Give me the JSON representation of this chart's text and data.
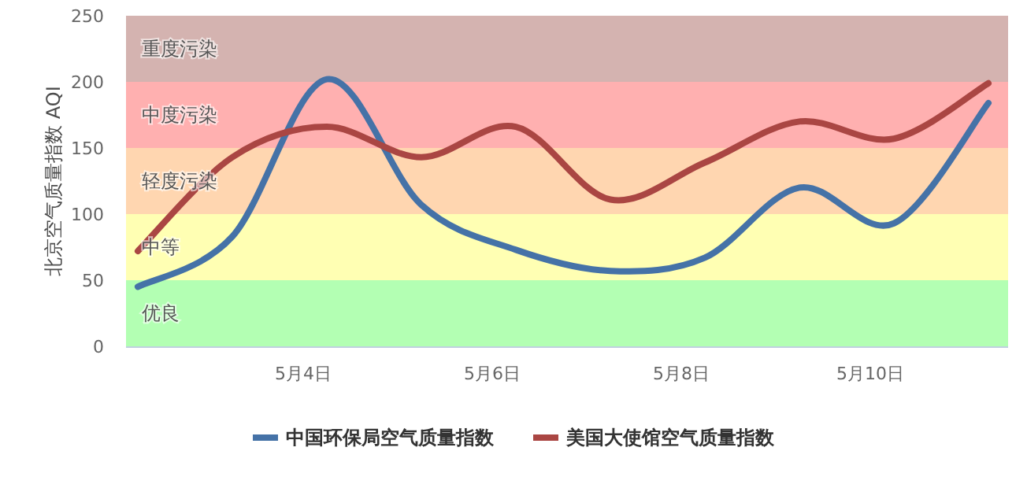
{
  "chart_data": {
    "type": "line",
    "ylabel": "北京空气质量指数 AQI",
    "legend": "bottom",
    "marker": "none",
    "xlim": [
      "--05-02T03:00",
      "--05-11T11:00"
    ],
    "xticks": [
      {
        "value": "--05-04",
        "label": "5月4日"
      },
      {
        "value": "--05-06",
        "label": "5月6日"
      },
      {
        "value": "--05-08",
        "label": "5月8日"
      },
      {
        "value": "--05-10",
        "label": "5月10日"
      }
    ],
    "ylim": [
      0,
      250
    ],
    "yticks": [
      0,
      50,
      100,
      150,
      200,
      250
    ],
    "bands": [
      {
        "axis": "y",
        "from": 0,
        "to": 50,
        "label": "优良",
        "color": "#b3ffb3"
      },
      {
        "axis": "y",
        "from": 50,
        "to": 100,
        "label": "中等",
        "color": "#ffffb3"
      },
      {
        "axis": "y",
        "from": 100,
        "to": 150,
        "label": "轻度污染",
        "color": "#ffd6b0"
      },
      {
        "axis": "y",
        "from": 150,
        "to": 200,
        "label": "中度污染",
        "color": "#ffb0b0"
      },
      {
        "axis": "y",
        "from": 200,
        "to": 250,
        "label": "重度污染",
        "color": "#d4b3b0"
      }
    ],
    "series": [
      {
        "name": "中国环保局空气质量指数",
        "color": "#4572a7",
        "x": [
          "--05-02T06:00",
          "--05-03T06:00",
          "--05-04T06:00",
          "--05-05T06:00",
          "--05-06T06:00",
          "--05-07T06:00",
          "--05-08T06:00",
          "--05-09T06:00",
          "--05-10T06:00",
          "--05-11T06:00"
        ],
        "values": [
          45,
          83,
          202,
          107,
          73,
          57,
          67,
          120,
          93,
          184
        ]
      },
      {
        "name": "美国大使馆空气质量指数",
        "color": "#aa4643",
        "x": [
          "--05-02T06:00",
          "--05-03T06:00",
          "--05-04T06:00",
          "--05-05T06:00",
          "--05-06T06:00",
          "--05-07T06:00",
          "--05-08T06:00",
          "--05-09T06:00",
          "--05-10T06:00",
          "--05-11T06:00"
        ],
        "values": [
          72,
          143,
          166,
          143,
          166,
          111,
          139,
          170,
          157,
          199
        ]
      }
    ]
  }
}
